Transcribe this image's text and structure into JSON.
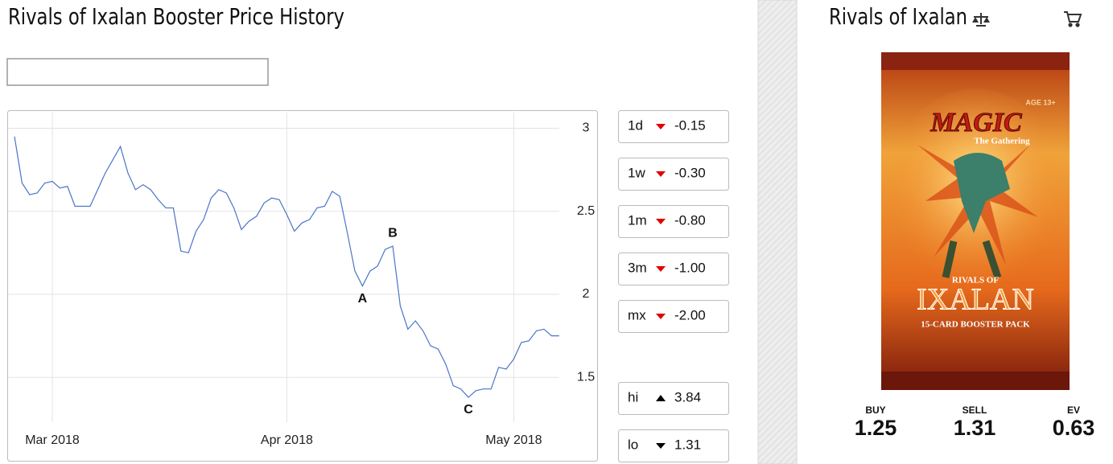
{
  "title": "Rivals of Ixalan Booster Price History",
  "chart_data": {
    "type": "line",
    "categories": [
      null,
      null,
      null,
      null,
      null,
      "Mar 2018",
      null,
      null,
      null,
      null,
      null,
      null,
      null,
      null,
      null,
      null,
      null,
      null,
      null,
      null,
      null,
      null,
      null,
      null,
      null,
      null,
      null,
      null,
      null,
      null,
      null,
      null,
      null,
      null,
      null,
      null,
      "Apr 2018",
      null,
      null,
      null,
      null,
      null,
      null,
      null,
      null,
      null,
      null,
      null,
      null,
      null,
      null,
      null,
      null,
      null,
      null,
      null,
      null,
      null,
      null,
      null,
      null,
      null,
      null,
      null,
      null,
      null,
      "May 2018",
      null,
      null,
      null,
      null,
      null,
      null
    ],
    "series": [
      {
        "color": "#4a74c9",
        "values": [
          2.95,
          2.67,
          2.6,
          2.61,
          2.67,
          2.68,
          2.64,
          2.65,
          2.53,
          2.53,
          2.53,
          2.63,
          2.73,
          2.81,
          2.89,
          2.73,
          2.63,
          2.66,
          2.63,
          2.57,
          2.52,
          2.52,
          2.26,
          2.25,
          2.38,
          2.45,
          2.58,
          2.63,
          2.61,
          2.52,
          2.39,
          2.44,
          2.47,
          2.55,
          2.58,
          2.57,
          2.48,
          2.38,
          2.43,
          2.45,
          2.52,
          2.53,
          2.62,
          2.59,
          2.37,
          2.14,
          2.05,
          2.14,
          2.17,
          2.27,
          2.29,
          1.93,
          1.79,
          1.84,
          1.78,
          1.69,
          1.67,
          1.58,
          1.45,
          1.43,
          1.38,
          1.42,
          1.43,
          1.43,
          1.56,
          1.55,
          1.61,
          1.71,
          1.72,
          1.78,
          1.79,
          1.75,
          1.75
        ]
      }
    ],
    "point_labels": [
      null,
      null,
      null,
      null,
      null,
      null,
      null,
      null,
      null,
      null,
      null,
      null,
      null,
      null,
      null,
      null,
      null,
      null,
      null,
      null,
      null,
      null,
      null,
      null,
      null,
      null,
      null,
      null,
      null,
      null,
      null,
      null,
      null,
      null,
      null,
      null,
      null,
      null,
      null,
      null,
      null,
      null,
      null,
      null,
      null,
      null,
      "A",
      null,
      null,
      null,
      "B",
      null,
      null,
      null,
      null,
      null,
      null,
      null,
      null,
      null,
      "C",
      null,
      null,
      null,
      null,
      null,
      null,
      null,
      null,
      null,
      null,
      null,
      null
    ],
    "ylim": [
      1.23,
      3.07
    ],
    "yticks": [
      1.5,
      2,
      2.5,
      3
    ],
    "grid": true
  },
  "stats": [
    {
      "label": "1d",
      "value": "-0.15",
      "arrow": "down",
      "color": "#e00000"
    },
    {
      "label": "1w",
      "value": "-0.30",
      "arrow": "down",
      "color": "#e00000"
    },
    {
      "label": "1m",
      "value": "-0.80",
      "arrow": "down",
      "color": "#e00000"
    },
    {
      "label": "3m",
      "value": "-1.00",
      "arrow": "down",
      "color": "#e00000"
    },
    {
      "label": "mx",
      "value": "-2.00",
      "arrow": "down",
      "color": "#e00000"
    }
  ],
  "range": [
    {
      "label": "hi",
      "value": "3.84",
      "arrow": "up",
      "color": "#000000"
    },
    {
      "label": "lo",
      "value": "1.31",
      "arrow": "down",
      "color": "#000000"
    }
  ],
  "product": {
    "title": "Rivals of Ixalan",
    "pack": {
      "age": "AGE 13+",
      "brand": "MAGIC",
      "tagline": "The Gathering",
      "set_top": "RIVALS OF",
      "set_name": "IXALAN",
      "description": "15-CARD BOOSTER PACK"
    },
    "prices": [
      {
        "label": "BUY",
        "value": "1.25"
      },
      {
        "label": "SELL",
        "value": "1.31"
      },
      {
        "label": "EV",
        "value": "0.63"
      }
    ]
  }
}
